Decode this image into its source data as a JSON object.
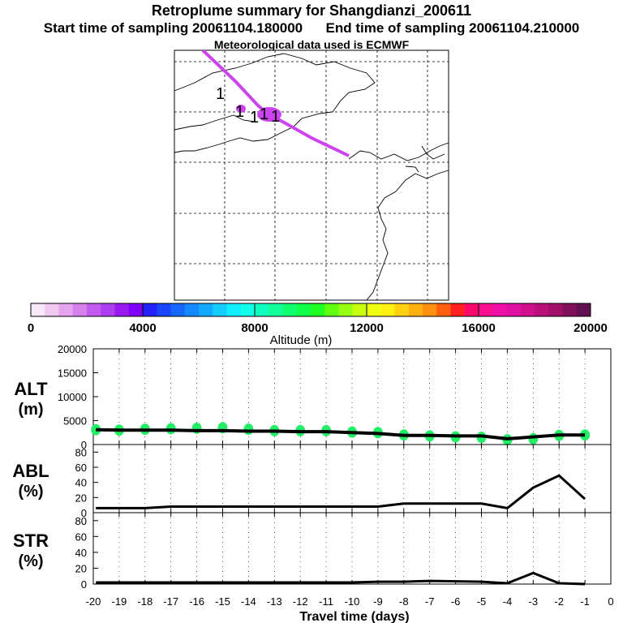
{
  "header": {
    "title": "Retroplume summary for Shangdianzi_200611",
    "start": "Start time of sampling 20061104.180000",
    "end": "End time of sampling 20061104.210000",
    "met": "Meteorological data used is ECMWF"
  },
  "map": {
    "labels": [
      "1",
      "1",
      "1",
      "1",
      "1"
    ]
  },
  "colorbar": {
    "label": "Altitude (m)",
    "ticks": [
      "0",
      "4000",
      "8000",
      "12000",
      "16000",
      "20000"
    ],
    "min": 0,
    "max": 20000,
    "colors": [
      "#f7e8f7",
      "#f0c8f0",
      "#e6a4ee",
      "#d680ee",
      "#c35af0",
      "#ae3cf0",
      "#9a18f0",
      "#7e00f8",
      "#2222f8",
      "#1844fa",
      "#1666fc",
      "#1488fd",
      "#12aafe",
      "#14ccfe",
      "#10eefe",
      "#10ffe8",
      "#10ffc0",
      "#10ff98",
      "#10ff70",
      "#10ff48",
      "#20ff20",
      "#60ff10",
      "#98ff10",
      "#c8ff10",
      "#f0ff10",
      "#fff010",
      "#ffd010",
      "#ffb010",
      "#ff9010",
      "#ff6010",
      "#ff2020",
      "#f8086a",
      "#f81090",
      "#f010a8",
      "#e010a0",
      "#d0108c",
      "#b81078",
      "#a01068",
      "#80105c",
      "#601050"
    ]
  },
  "chart_data": [
    {
      "type": "scatter",
      "panel": "ALT",
      "ylabel": "ALT\n(m)",
      "ylim": [
        0,
        20000
      ],
      "yticks": [
        "20000",
        "15000",
        "10000",
        "5000",
        "0"
      ],
      "x": [
        -19.9,
        -19,
        -18,
        -17,
        -16,
        -15,
        -14,
        -13,
        -12,
        -11,
        -10,
        -9,
        -8,
        -7,
        -6,
        -5,
        -4,
        -3,
        -2,
        -1
      ],
      "line": [
        3100,
        3000,
        3000,
        3000,
        2900,
        2900,
        2800,
        2800,
        2700,
        2700,
        2500,
        2300,
        1900,
        1900,
        1800,
        1800,
        1200,
        1600,
        2000,
        2000
      ],
      "points": [
        3100,
        3000,
        3200,
        3300,
        3400,
        3500,
        3200,
        2900,
        2900,
        2900,
        2600,
        2500,
        2000,
        1800,
        1600,
        1500,
        1000,
        1200,
        1900,
        2000
      ]
    },
    {
      "type": "line",
      "panel": "ABL",
      "ylabel": "ABL\n(%)",
      "ylim": [
        0,
        90
      ],
      "yticks": [
        "80",
        "60",
        "40",
        "20",
        "0"
      ],
      "x": [
        -19.9,
        -18,
        -17,
        -10,
        -9,
        -8,
        -5,
        -4,
        -3,
        -2,
        -1
      ],
      "values": [
        6,
        6,
        8,
        8,
        8,
        12,
        12,
        6,
        33,
        49,
        18
      ]
    },
    {
      "type": "line",
      "panel": "STR",
      "ylabel": "STR\n(%)",
      "ylim": [
        0,
        90
      ],
      "yticks": [
        "80",
        "60",
        "40",
        "20",
        "0"
      ],
      "x": [
        -19.9,
        -17,
        -10,
        -9,
        -8,
        -7,
        -5,
        -4,
        -3,
        -2,
        -1
      ],
      "values": [
        2,
        2,
        2,
        3,
        3,
        4,
        3,
        1,
        14,
        1,
        0
      ]
    }
  ],
  "xaxis": {
    "label": "Travel time (days)",
    "ticks": [
      "-20",
      "-19",
      "-18",
      "-17",
      "-16",
      "-15",
      "-14",
      "-13",
      "-12",
      "-11",
      "-10",
      "-9",
      "-8",
      "-7",
      "-6",
      "-5",
      "-4",
      "-3",
      "-2",
      "-1",
      "0"
    ]
  },
  "colors": {
    "plume": "#cc44ee",
    "dot": "#22ee66",
    "line": "#000000"
  }
}
